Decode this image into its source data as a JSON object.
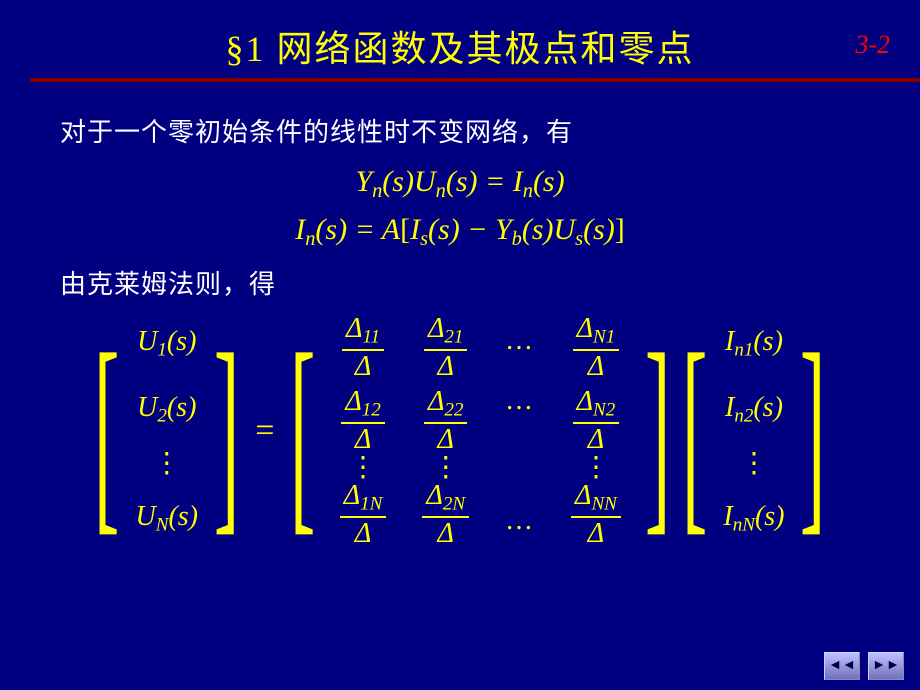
{
  "colors": {
    "background": "#000080",
    "title": "#ffff00",
    "equation": "#ffff00",
    "body_text": "#ffffff",
    "underline": "#800000",
    "page_number": "#ff0000"
  },
  "typography": {
    "title_fontsize": 36,
    "body_fontsize": 26,
    "equation_fontsize": 30,
    "matrix_fontsize": 28
  },
  "header": {
    "title": "§1  网络函数及其极点和零点",
    "page_number": "3-2"
  },
  "body": {
    "para1": "对于一个零初始条件的线性时不变网络，有",
    "eq1_line1": {
      "lhs_Y": "Y",
      "lhs_Y_sub": "n",
      "arg1": "(s)",
      "lhs_U": "U",
      "lhs_U_sub": "n",
      "arg2": "(s)",
      "eq": " = ",
      "rhs_I": "I",
      "rhs_I_sub": "n",
      "arg3": "(s)"
    },
    "eq1_line2": {
      "lhs_I": "I",
      "lhs_I_sub": "n",
      "arg1": "(s)",
      "eq": " = ",
      "A": "A",
      "lb": "[",
      "Is": "I",
      "Is_sub": "s",
      "arg2": "(s)",
      "minus": " − ",
      "Yb": "Y",
      "Yb_sub": "b",
      "arg3": "(s)",
      "Us": "U",
      "Us_sub": "s",
      "arg4": "(s)",
      "rb": "]"
    },
    "para2": "由克莱姆法则，得",
    "matrix": {
      "lhs_vec": [
        "U₁(s)",
        "U₂(s)",
        "⋮",
        "U_N(s)"
      ],
      "lhs": {
        "U": "U",
        "sub1": "1",
        "sub2": "2",
        "subN": "N",
        "arg": "(s)"
      },
      "mid": {
        "Delta": "Δ",
        "cols": [
          {
            "nums": [
              "11",
              "12",
              "1N"
            ]
          },
          {
            "nums": [
              "21",
              "22",
              "2N"
            ]
          },
          {
            "dots": "…"
          },
          {
            "nums": [
              "N1",
              "N2",
              "NN"
            ]
          }
        ]
      },
      "rhs": {
        "I": "I",
        "nsub": "n",
        "sub1": "1",
        "sub2": "2",
        "subN": "N",
        "arg": "(s)"
      }
    }
  },
  "nav": {
    "prev_icon": "◄◄",
    "next_icon": "►►"
  }
}
